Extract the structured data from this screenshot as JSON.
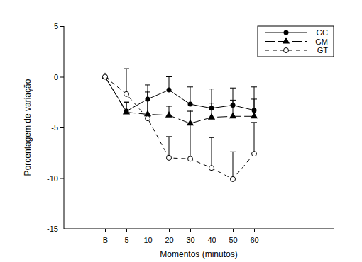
{
  "chart_data": {
    "type": "line",
    "x_label": "Momentos (minutos)",
    "y_label": "Porcentagem de variação",
    "categories": [
      "B",
      "5",
      "10",
      "20",
      "30",
      "40",
      "50",
      "60"
    ],
    "ylim": [
      -15,
      5
    ],
    "yticks": [
      -15,
      -10,
      -5,
      0,
      5
    ],
    "legend": "upper right",
    "series": [
      {
        "name": "GC",
        "color": "#000000",
        "marker": "circle",
        "line_style": "solid",
        "values": [
          0,
          -3.4,
          -2.2,
          -1.3,
          -2.7,
          -3.1,
          -2.8,
          -3.3
        ],
        "errors": [
          null,
          0.9,
          1.4,
          1.3,
          1.7,
          1.9,
          1.7,
          2.3
        ]
      },
      {
        "name": "GM",
        "color": "#000000",
        "marker": "triangle",
        "line_style": "long-dash",
        "values": [
          0,
          -3.5,
          -3.7,
          -3.8,
          -4.6,
          -4.0,
          -3.9,
          -3.9
        ],
        "errors": [
          null,
          1.0,
          2.2,
          0.9,
          1.2,
          1.4,
          1.6,
          1.7
        ]
      },
      {
        "name": "GT",
        "color": "#000000",
        "marker": "circle-open",
        "line_style": "dashed",
        "values": [
          0,
          -1.7,
          -4.1,
          -8.0,
          -8.1,
          -9.0,
          -10.1,
          -7.6
        ],
        "errors": [
          null,
          2.5,
          2.7,
          2.1,
          4.8,
          3.0,
          2.7,
          3.1
        ]
      }
    ]
  }
}
